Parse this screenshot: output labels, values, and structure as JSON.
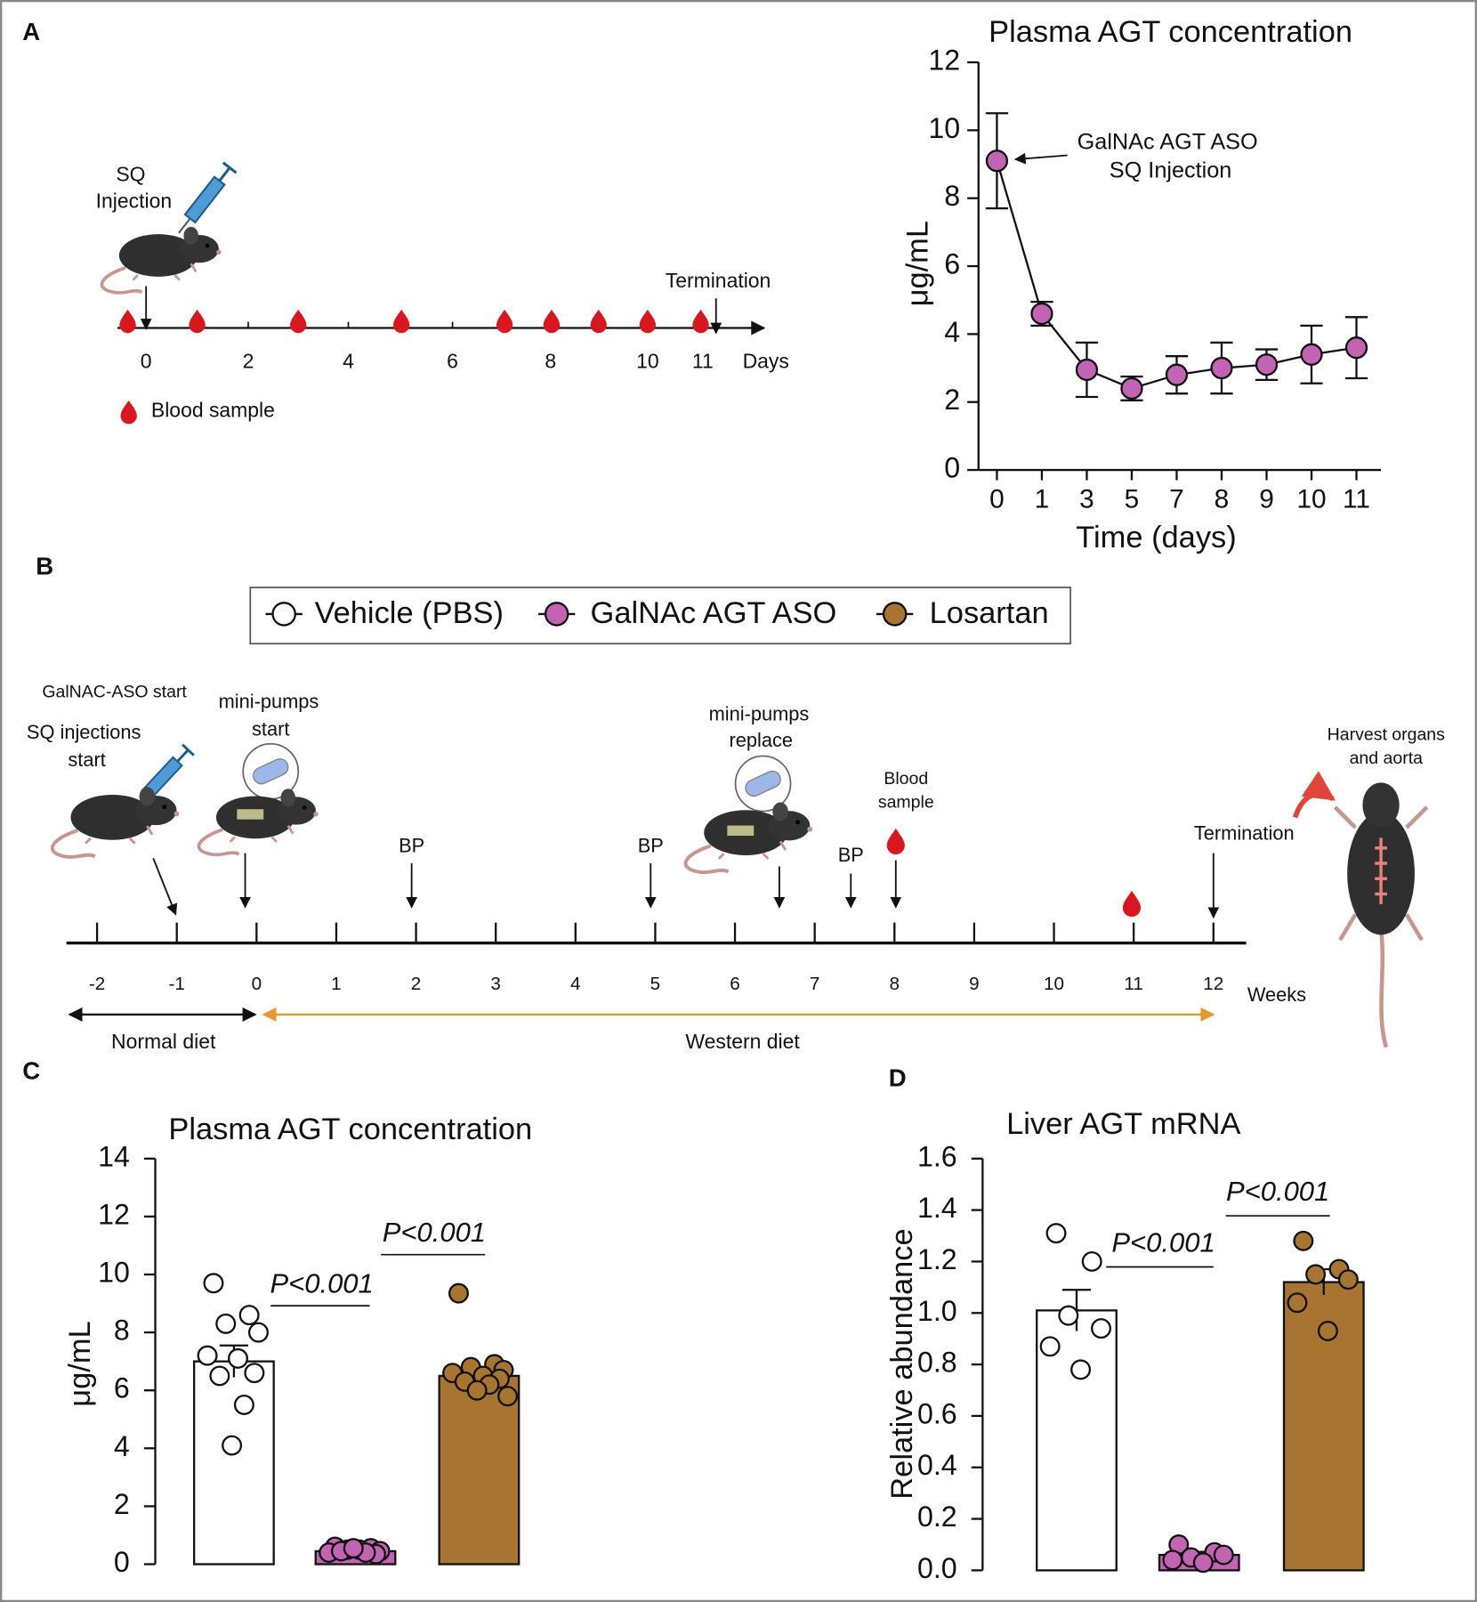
{
  "panels": [
    "A",
    "B",
    "C",
    "D"
  ],
  "timeline_a": {
    "injection": [
      "SQ",
      "Injection"
    ],
    "termination": "Termination",
    "ticks": [
      "0",
      "2",
      "4",
      "6",
      "8",
      "10",
      "11"
    ],
    "unit": "Days",
    "sample_legend": "Blood sample"
  },
  "timeline_b": {
    "ticks": [
      "-2",
      "-1",
      "0",
      "1",
      "2",
      "3",
      "4",
      "5",
      "6",
      "7",
      "8",
      "9",
      "10",
      "11",
      "12"
    ],
    "unit": "Weeks",
    "aso_start": "GalNAC-ASO start",
    "sq_start": [
      "SQ injections",
      "start"
    ],
    "pumps_start": [
      "mini-pumps",
      "start"
    ],
    "bp": [
      "BP",
      "BP",
      "BP"
    ],
    "pumps_replace": [
      "mini-pumps",
      "replace"
    ],
    "blood": [
      "Blood",
      "sample"
    ],
    "termination": "Termination",
    "harvest": [
      "Harvest organs",
      "and aorta"
    ],
    "normal_diet": "Normal diet",
    "western_diet": "Western diet"
  },
  "legend": [
    {
      "name": "Vehicle (PBS)",
      "color": "#ffffff"
    },
    {
      "name": "GalNAc AGT ASO",
      "color": "#c263b4"
    },
    {
      "name": "Losartan",
      "color": "#a87432"
    }
  ],
  "chart_data": [
    {
      "type": "line",
      "title": "Plasma AGT concentration",
      "xlabel": "Time (days)",
      "ylabel": "μg/mL",
      "categories": [
        "0",
        "1",
        "3",
        "5",
        "7",
        "8",
        "9",
        "10",
        "11"
      ],
      "values": [
        9.1,
        4.6,
        2.95,
        2.4,
        2.8,
        3.0,
        3.1,
        3.4,
        3.6
      ],
      "errors": [
        1.4,
        0.35,
        0.8,
        0.35,
        0.55,
        0.75,
        0.45,
        0.85,
        0.9
      ],
      "color": "#c263b4",
      "annotation": [
        "GalNAc AGT ASO",
        "SQ Injection"
      ],
      "ylim": [
        0,
        12
      ],
      "yticks": [
        0,
        2,
        4,
        6,
        8,
        10,
        12
      ]
    },
    {
      "type": "bar",
      "title": "Plasma AGT concentration",
      "ylabel": "μg/mL",
      "categories": [
        null,
        null,
        null
      ],
      "values": [
        7.0,
        0.45,
        6.5
      ],
      "errors": [
        0.55,
        0.06,
        0.3
      ],
      "colors": [
        "#ffffff",
        "#c263b4",
        "#a87432"
      ],
      "points": [
        [
          9.7,
          8.6,
          8.3,
          8.0,
          7.2,
          7.1,
          6.6,
          6.5,
          5.5,
          4.1
        ],
        [
          0.6,
          0.55,
          0.5,
          0.45,
          0.4,
          0.5,
          0.35,
          0.45,
          0.4,
          0.55
        ],
        [
          9.35,
          6.9,
          6.8,
          6.7,
          6.6,
          6.5,
          6.4,
          6.3,
          6.2,
          6.0,
          5.8
        ]
      ],
      "annotations": [
        "P<0.001",
        "P<0.001"
      ],
      "ylim": [
        0,
        14
      ],
      "yticks": [
        0,
        2,
        4,
        6,
        8,
        10,
        12,
        14
      ]
    },
    {
      "type": "bar",
      "title": "Liver AGT mRNA",
      "ylabel": "Relative abundance",
      "categories": [
        null,
        null,
        null
      ],
      "values": [
        1.01,
        0.06,
        1.12
      ],
      "errors": [
        0.08,
        0.012,
        0.05
      ],
      "colors": [
        "#ffffff",
        "#c263b4",
        "#a87432"
      ],
      "points": [
        [
          1.31,
          1.2,
          0.99,
          0.94,
          0.87,
          0.78
        ],
        [
          0.1,
          0.07,
          0.05,
          0.06,
          0.04,
          0.03
        ],
        [
          1.28,
          1.17,
          1.15,
          1.13,
          1.04,
          0.93
        ]
      ],
      "annotations": [
        "P<0.001",
        "P<0.001"
      ],
      "ylim": [
        0,
        1.6
      ],
      "yticks": [
        {
          "value": 0,
          "label": "0.0"
        },
        0.2,
        0.4,
        0.6,
        0.8,
        {
          "value": 1,
          "label": "1.0"
        },
        1.2,
        1.4,
        1.6
      ]
    }
  ]
}
